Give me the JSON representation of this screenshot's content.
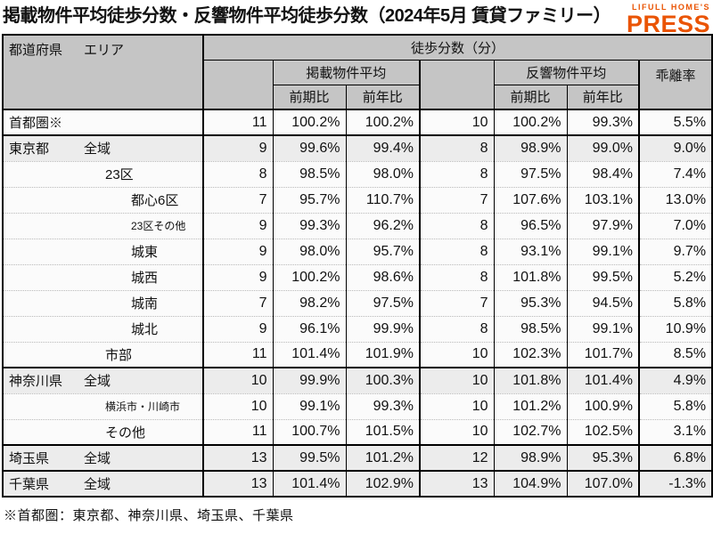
{
  "page": {
    "title": "掲載物件平均徒歩分数・反響物件平均徒歩分数（2024年5月 賃貸ファミリー）",
    "note": "※首都圏：東京都、神奈川県、埼玉県、千葉県"
  },
  "logo": {
    "line1": "LIFULL HOME'S",
    "line2": "PRESS",
    "color": "#ea5404"
  },
  "colors": {
    "header_bg": "#c5c5c5",
    "row_shaded": "#ececec",
    "row_default": "#fbfbfb",
    "accent_orange": "#ea5404"
  },
  "table": {
    "header": {
      "col_pref": "都道府県",
      "col_area": "エリア",
      "group_top": "徒歩分数（分）",
      "group_listed": "掲載物件平均",
      "group_response": "反響物件平均",
      "col_deviation": "乖離率",
      "sub_prev_period": "前期比",
      "sub_prev_year": "前年比"
    },
    "rows": [
      {
        "prefecture": "首都圏※",
        "area": "",
        "indent": 0,
        "small": false,
        "shaded": false,
        "thick_bottom": true,
        "values": [
          "11",
          "100.2%",
          "100.2%",
          "10",
          "100.2%",
          "99.3%",
          "5.5%"
        ]
      },
      {
        "prefecture": "東京都",
        "area": "全域",
        "indent": 0,
        "small": false,
        "shaded": true,
        "thick_bottom": false,
        "values": [
          "9",
          "99.6%",
          "99.4%",
          "8",
          "98.9%",
          "99.0%",
          "9.0%"
        ]
      },
      {
        "prefecture": "",
        "area": "23区",
        "indent": 1,
        "small": false,
        "shaded": false,
        "thick_bottom": false,
        "values": [
          "8",
          "98.5%",
          "98.0%",
          "8",
          "97.5%",
          "98.4%",
          "7.4%"
        ]
      },
      {
        "prefecture": "",
        "area": "都心6区",
        "indent": 2,
        "small": false,
        "shaded": false,
        "thick_bottom": false,
        "values": [
          "7",
          "95.7%",
          "110.7%",
          "7",
          "107.6%",
          "103.1%",
          "13.0%"
        ]
      },
      {
        "prefecture": "",
        "area": "23区その他",
        "indent": 2,
        "small": true,
        "shaded": false,
        "thick_bottom": false,
        "values": [
          "9",
          "99.3%",
          "96.2%",
          "8",
          "96.5%",
          "97.9%",
          "7.0%"
        ]
      },
      {
        "prefecture": "",
        "area": "城東",
        "indent": 2,
        "small": false,
        "shaded": false,
        "thick_bottom": false,
        "values": [
          "9",
          "98.0%",
          "95.7%",
          "8",
          "93.1%",
          "99.1%",
          "9.7%"
        ]
      },
      {
        "prefecture": "",
        "area": "城西",
        "indent": 2,
        "small": false,
        "shaded": false,
        "thick_bottom": false,
        "values": [
          "9",
          "100.2%",
          "98.6%",
          "8",
          "101.8%",
          "99.5%",
          "5.2%"
        ]
      },
      {
        "prefecture": "",
        "area": "城南",
        "indent": 2,
        "small": false,
        "shaded": false,
        "thick_bottom": false,
        "values": [
          "7",
          "98.2%",
          "97.5%",
          "7",
          "95.3%",
          "94.5%",
          "5.8%"
        ]
      },
      {
        "prefecture": "",
        "area": "城北",
        "indent": 2,
        "small": false,
        "shaded": false,
        "thick_bottom": false,
        "values": [
          "9",
          "96.1%",
          "99.9%",
          "8",
          "98.5%",
          "99.1%",
          "10.9%"
        ]
      },
      {
        "prefecture": "",
        "area": "市部",
        "indent": 1,
        "small": false,
        "shaded": false,
        "thick_bottom": true,
        "values": [
          "11",
          "101.4%",
          "101.9%",
          "10",
          "102.3%",
          "101.7%",
          "8.5%"
        ]
      },
      {
        "prefecture": "神奈川県",
        "area": "全域",
        "indent": 0,
        "small": false,
        "shaded": true,
        "thick_bottom": false,
        "values": [
          "10",
          "99.9%",
          "100.3%",
          "10",
          "101.8%",
          "101.4%",
          "4.9%"
        ]
      },
      {
        "prefecture": "",
        "area": "横浜市・川崎市",
        "indent": 1,
        "small": true,
        "shaded": false,
        "thick_bottom": false,
        "values": [
          "10",
          "99.1%",
          "99.3%",
          "10",
          "101.2%",
          "100.9%",
          "5.8%"
        ]
      },
      {
        "prefecture": "",
        "area": "その他",
        "indent": 1,
        "small": false,
        "shaded": false,
        "thick_bottom": true,
        "values": [
          "11",
          "100.7%",
          "101.5%",
          "10",
          "102.7%",
          "102.5%",
          "3.1%"
        ]
      },
      {
        "prefecture": "埼玉県",
        "area": "全域",
        "indent": 0,
        "small": false,
        "shaded": true,
        "thick_bottom": true,
        "values": [
          "13",
          "99.5%",
          "101.2%",
          "12",
          "98.9%",
          "95.3%",
          "6.8%"
        ]
      },
      {
        "prefecture": "千葉県",
        "area": "全域",
        "indent": 0,
        "small": false,
        "shaded": true,
        "thick_bottom": false,
        "values": [
          "13",
          "101.4%",
          "102.9%",
          "13",
          "104.9%",
          "107.0%",
          "-1.3%"
        ]
      }
    ]
  },
  "chart_data": {
    "type": "table",
    "title": "掲載物件平均徒歩分数・反響物件平均徒歩分数（2024年5月 賃貸ファミリー）",
    "columns": [
      "都道府県",
      "エリア",
      "掲載物件平均 徒歩分数(分)",
      "掲載 前期比",
      "掲載 前年比",
      "反響物件平均 徒歩分数(分)",
      "反響 前期比",
      "反響 前年比",
      "乖離率"
    ],
    "rows": [
      [
        "首都圏※",
        "",
        11,
        "100.2%",
        "100.2%",
        10,
        "100.2%",
        "99.3%",
        "5.5%"
      ],
      [
        "東京都",
        "全域",
        9,
        "99.6%",
        "99.4%",
        8,
        "98.9%",
        "99.0%",
        "9.0%"
      ],
      [
        "東京都",
        "23区",
        8,
        "98.5%",
        "98.0%",
        8,
        "97.5%",
        "98.4%",
        "7.4%"
      ],
      [
        "東京都",
        "都心6区",
        7,
        "95.7%",
        "110.7%",
        7,
        "107.6%",
        "103.1%",
        "13.0%"
      ],
      [
        "東京都",
        "23区その他",
        9,
        "99.3%",
        "96.2%",
        8,
        "96.5%",
        "97.9%",
        "7.0%"
      ],
      [
        "東京都",
        "城東",
        9,
        "98.0%",
        "95.7%",
        8,
        "93.1%",
        "99.1%",
        "9.7%"
      ],
      [
        "東京都",
        "城西",
        9,
        "100.2%",
        "98.6%",
        8,
        "101.8%",
        "99.5%",
        "5.2%"
      ],
      [
        "東京都",
        "城南",
        7,
        "98.2%",
        "97.5%",
        7,
        "95.3%",
        "94.5%",
        "5.8%"
      ],
      [
        "東京都",
        "城北",
        9,
        "96.1%",
        "99.9%",
        8,
        "98.5%",
        "99.1%",
        "10.9%"
      ],
      [
        "東京都",
        "市部",
        11,
        "101.4%",
        "101.9%",
        10,
        "102.3%",
        "101.7%",
        "8.5%"
      ],
      [
        "神奈川県",
        "全域",
        10,
        "99.9%",
        "100.3%",
        10,
        "101.8%",
        "101.4%",
        "4.9%"
      ],
      [
        "神奈川県",
        "横浜市・川崎市",
        10,
        "99.1%",
        "99.3%",
        10,
        "101.2%",
        "100.9%",
        "5.8%"
      ],
      [
        "神奈川県",
        "その他",
        11,
        "100.7%",
        "101.5%",
        10,
        "102.7%",
        "102.5%",
        "3.1%"
      ],
      [
        "埼玉県",
        "全域",
        13,
        "99.5%",
        "101.2%",
        12,
        "98.9%",
        "95.3%",
        "6.8%"
      ],
      [
        "千葉県",
        "全域",
        13,
        "101.4%",
        "102.9%",
        13,
        "104.9%",
        "107.0%",
        "-1.3%"
      ]
    ],
    "note": "※首都圏：東京都、神奈川県、埼玉県、千葉県"
  }
}
